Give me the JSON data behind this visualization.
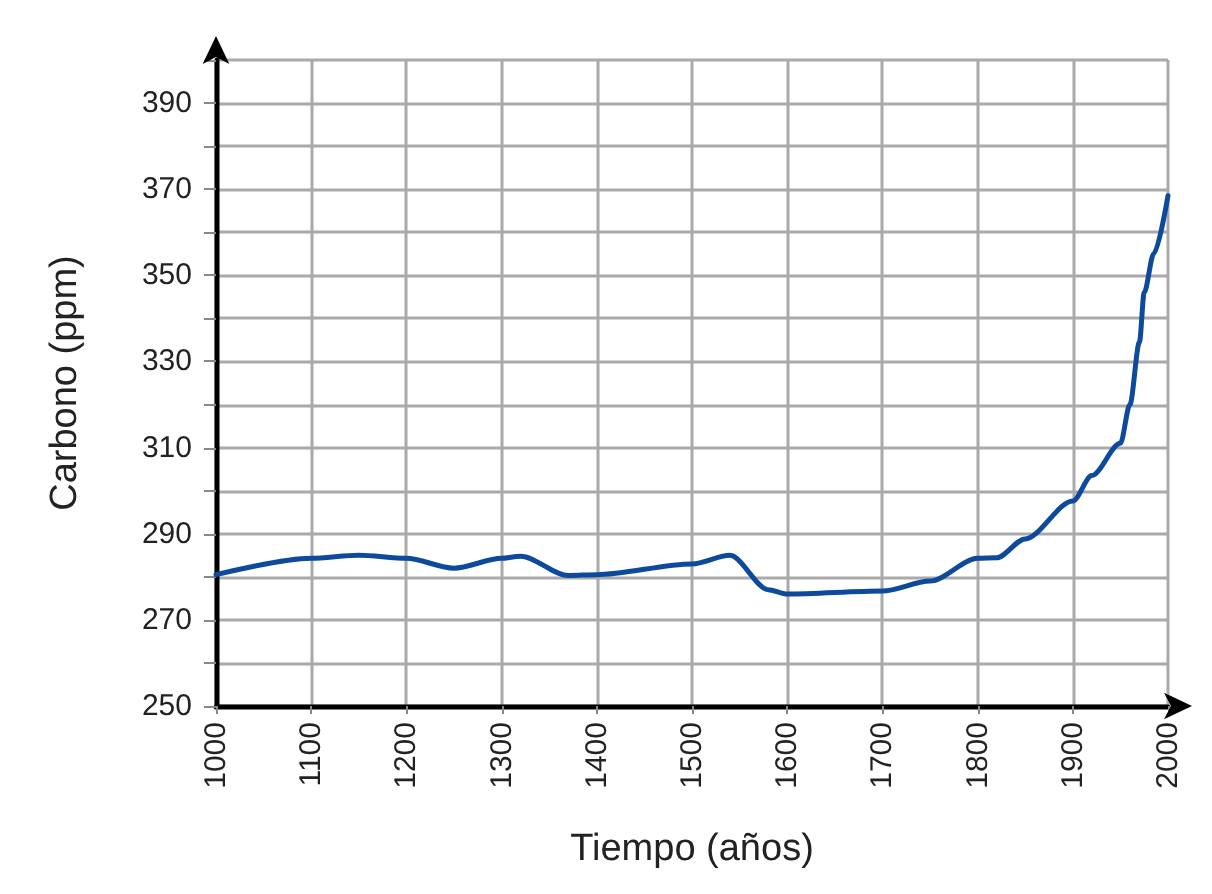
{
  "chart_data": {
    "type": "line",
    "xlabel": "Tiempo (años)",
    "ylabel": "Carbono (ppm)",
    "x": [
      1000,
      1100,
      1150,
      1200,
      1250,
      1300,
      1320,
      1370,
      1400,
      1500,
      1540,
      1580,
      1600,
      1700,
      1750,
      1800,
      1820,
      1850,
      1900,
      1920,
      1950,
      1960,
      1970,
      1975,
      1985,
      2000
    ],
    "series": [
      {
        "color": "#0d4a9c",
        "values": [
          280.5,
          284.3,
          285,
          284.3,
          282,
          284.3,
          284.8,
          280.3,
          280.5,
          283,
          285,
          277,
          276,
          276.7,
          279,
          284.3,
          284.4,
          288.8,
          297.6,
          303.5,
          311,
          320,
          334.5,
          346,
          355,
          368.5
        ]
      }
    ],
    "xlim": [
      1000,
      2000
    ],
    "xticks": [
      1000,
      1100,
      1200,
      1300,
      1400,
      1500,
      1600,
      1700,
      1800,
      1900,
      2000
    ],
    "ylim": [
      250,
      400
    ],
    "yticks": [
      250,
      {
        "value": 260,
        "label": null
      },
      270,
      {
        "value": 280,
        "label": null
      },
      290,
      {
        "value": 300,
        "label": null
      },
      310,
      {
        "value": 320,
        "label": null
      },
      330,
      {
        "value": 340,
        "label": null
      },
      350,
      {
        "value": 360,
        "label": null
      },
      370,
      {
        "value": 380,
        "label": null
      },
      390,
      {
        "value": 400,
        "label": null
      }
    ],
    "grid": true,
    "marker": "none",
    "line_style": "solid"
  }
}
